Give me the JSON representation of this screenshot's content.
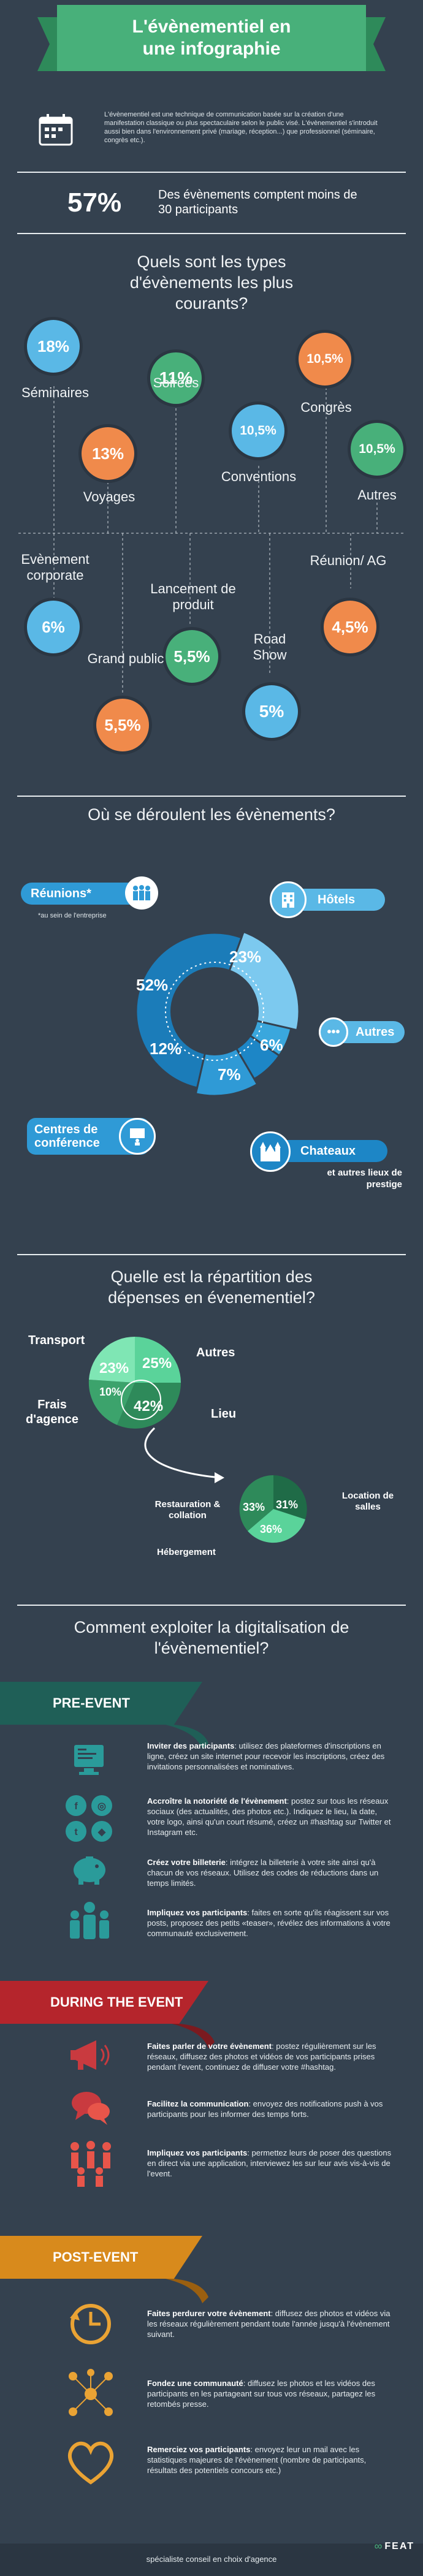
{
  "title": {
    "line1": "L'évènementiel en",
    "line2": "une infographie"
  },
  "intro": "L'évènementiel est une technique de communication basée sur la création d'une manifestation classique ou plus spectaculaire selon le public visé. L'évènementiel s'introduit aussi bien dans l'environnement privé (mariage, réception...) que professionnel (séminaire, congrès etc.).",
  "stat": {
    "value": "57%",
    "text": "Des évènements comptent moins de 30 participants"
  },
  "types": {
    "title": "Quels sont les types d'évènements les plus courants?",
    "items": [
      {
        "label": "Séminaires",
        "value": "18%",
        "color": "#5ab8e6"
      },
      {
        "label": "Soirées",
        "value": "11%",
        "color": "#48b07a"
      },
      {
        "label": "Congrès",
        "value": "10,5%",
        "color": "#f08a4b"
      },
      {
        "label": "Voyages",
        "value": "13%",
        "color": "#f08a4b"
      },
      {
        "label": "Conventions",
        "value": "10,5%",
        "color": "#5ab8e6"
      },
      {
        "label": "Autres",
        "value": "10,5%",
        "color": "#48b07a"
      },
      {
        "label": "Evènement corporate",
        "value": "6%",
        "color": "#5ab8e6"
      },
      {
        "label": "Lancement de produit",
        "value": "5,5%",
        "color": "#48b07a"
      },
      {
        "label": "Réunion/ AG",
        "value": "4,5%",
        "color": "#f08a4b"
      },
      {
        "label": "Grand public",
        "value": "5,5%",
        "color": "#f08a4b"
      },
      {
        "label": "Road Show",
        "value": "5%",
        "color": "#5ab8e6"
      }
    ]
  },
  "venues": {
    "title": "Où se déroulent les évènements?",
    "reunions": "Réunions*",
    "reunions_note": "*au sein de l'entreprise",
    "hotels": "Hôtels",
    "autres": "Autres",
    "centres": "Centres de conférence",
    "chateaux": "Chateaux",
    "chateaux_sub": "et autres lieux de prestige",
    "slices": [
      {
        "name": "Hôtels",
        "value": 23,
        "label": "23%",
        "color": "#7cc9ef"
      },
      {
        "name": "Autres",
        "value": 6,
        "label": "6%",
        "color": "#3aa7dd"
      },
      {
        "name": "Chateaux",
        "value": 7,
        "label": "7%",
        "color": "#1d86c6"
      },
      {
        "name": "Centres de conférence",
        "value": 12,
        "label": "12%",
        "color": "#2f9ad6"
      },
      {
        "name": "Réunions",
        "value": 52,
        "label": "52%",
        "color": "#1b7cb9"
      }
    ]
  },
  "spending": {
    "title": "Quelle est la répartition des dépenses en évenementiel?",
    "transport": "Transport",
    "autres": "Autres",
    "frais": "Frais d'agence",
    "lieu": "Lieu",
    "v_transport": "23%",
    "v_autres": "25%",
    "v_frais": "10%",
    "v_lieu": "42%",
    "restauration": "Restauration & collation",
    "location": "Location de salles",
    "hebergement": "Hébergement",
    "v_resto": "33%",
    "v_loc": "31%",
    "v_heb": "36%"
  },
  "digital": {
    "title": "Comment exploiter la digitalisation de l'évènementiel?",
    "pre": "PRE-EVENT",
    "during": "DURING THE EVENT",
    "post": "POST-EVENT",
    "items": [
      {
        "bold": "Inviter des participants",
        "text": ": utilisez des plateformes d'inscriptions en ligne, créez un site internet pour recevoir les inscriptions, créez des invitations personnalisées et nominatives."
      },
      {
        "bold": "Accroître la notoriété de l'évènement",
        "text": ": postez sur tous les réseaux sociaux (des actualités, des photos etc.). Indiquez le lieu, la date, votre logo, ainsi qu'un court résumé, créez un #hashtag sur Twitter et Instagram etc."
      },
      {
        "bold": "Créez votre billeterie",
        "text": ": intégrez la billeterie à votre site ainsi qu'à chacun de vos réseaux. Utilisez des codes de réductions dans un temps limités."
      },
      {
        "bold": "Impliquez vos participants",
        "text": ": faites en sorte qu'ils réagissent sur vos posts, proposez des petits «teaser», révélez des informations à votre communauté exclusivement."
      },
      {
        "bold": "Faites parler de votre évènement",
        "text": ": postez régulièrement sur les réseaux, diffusez des photos et vidéos de vos participants prises pendant l'event, continuez de diffuser votre #hashtag."
      },
      {
        "bold": "Facilitez la communication",
        "text": ": envoyez des notifications push à vos participants pour les informer des temps forts."
      },
      {
        "bold": "Impliquez vos participants",
        "text": ": permettez leurs de poser des questions en direct via une application, interviewez les sur leur avis vis-à-vis de l'event."
      },
      {
        "bold": "Faites perdurer votre évènement",
        "text": ": diffusez des photos et vidéos via les réseaux régulièrement pendant toute l'année jusqu'à l'évènement suivant."
      },
      {
        "bold": "Fondez une communauté",
        "text": ": diffusez les photos et les vidéos des participants en les partageant sur tous vos réseaux, partagez les retombés presse."
      },
      {
        "bold": "Remerciez vos participants",
        "text": ": envoyez leur un mail avec les statistiques majeures de l'évènement (nombre de participants, résultats des potentiels concours etc.)"
      }
    ]
  },
  "footer": {
    "tagline": "spécialiste conseil en choix d'agence",
    "brand": "FEAT"
  },
  "colors": {
    "bg": "#34414f",
    "green": "#48b07a",
    "blue": "#5ab8e6",
    "orange": "#f08a4b",
    "red": "#b5252c"
  }
}
